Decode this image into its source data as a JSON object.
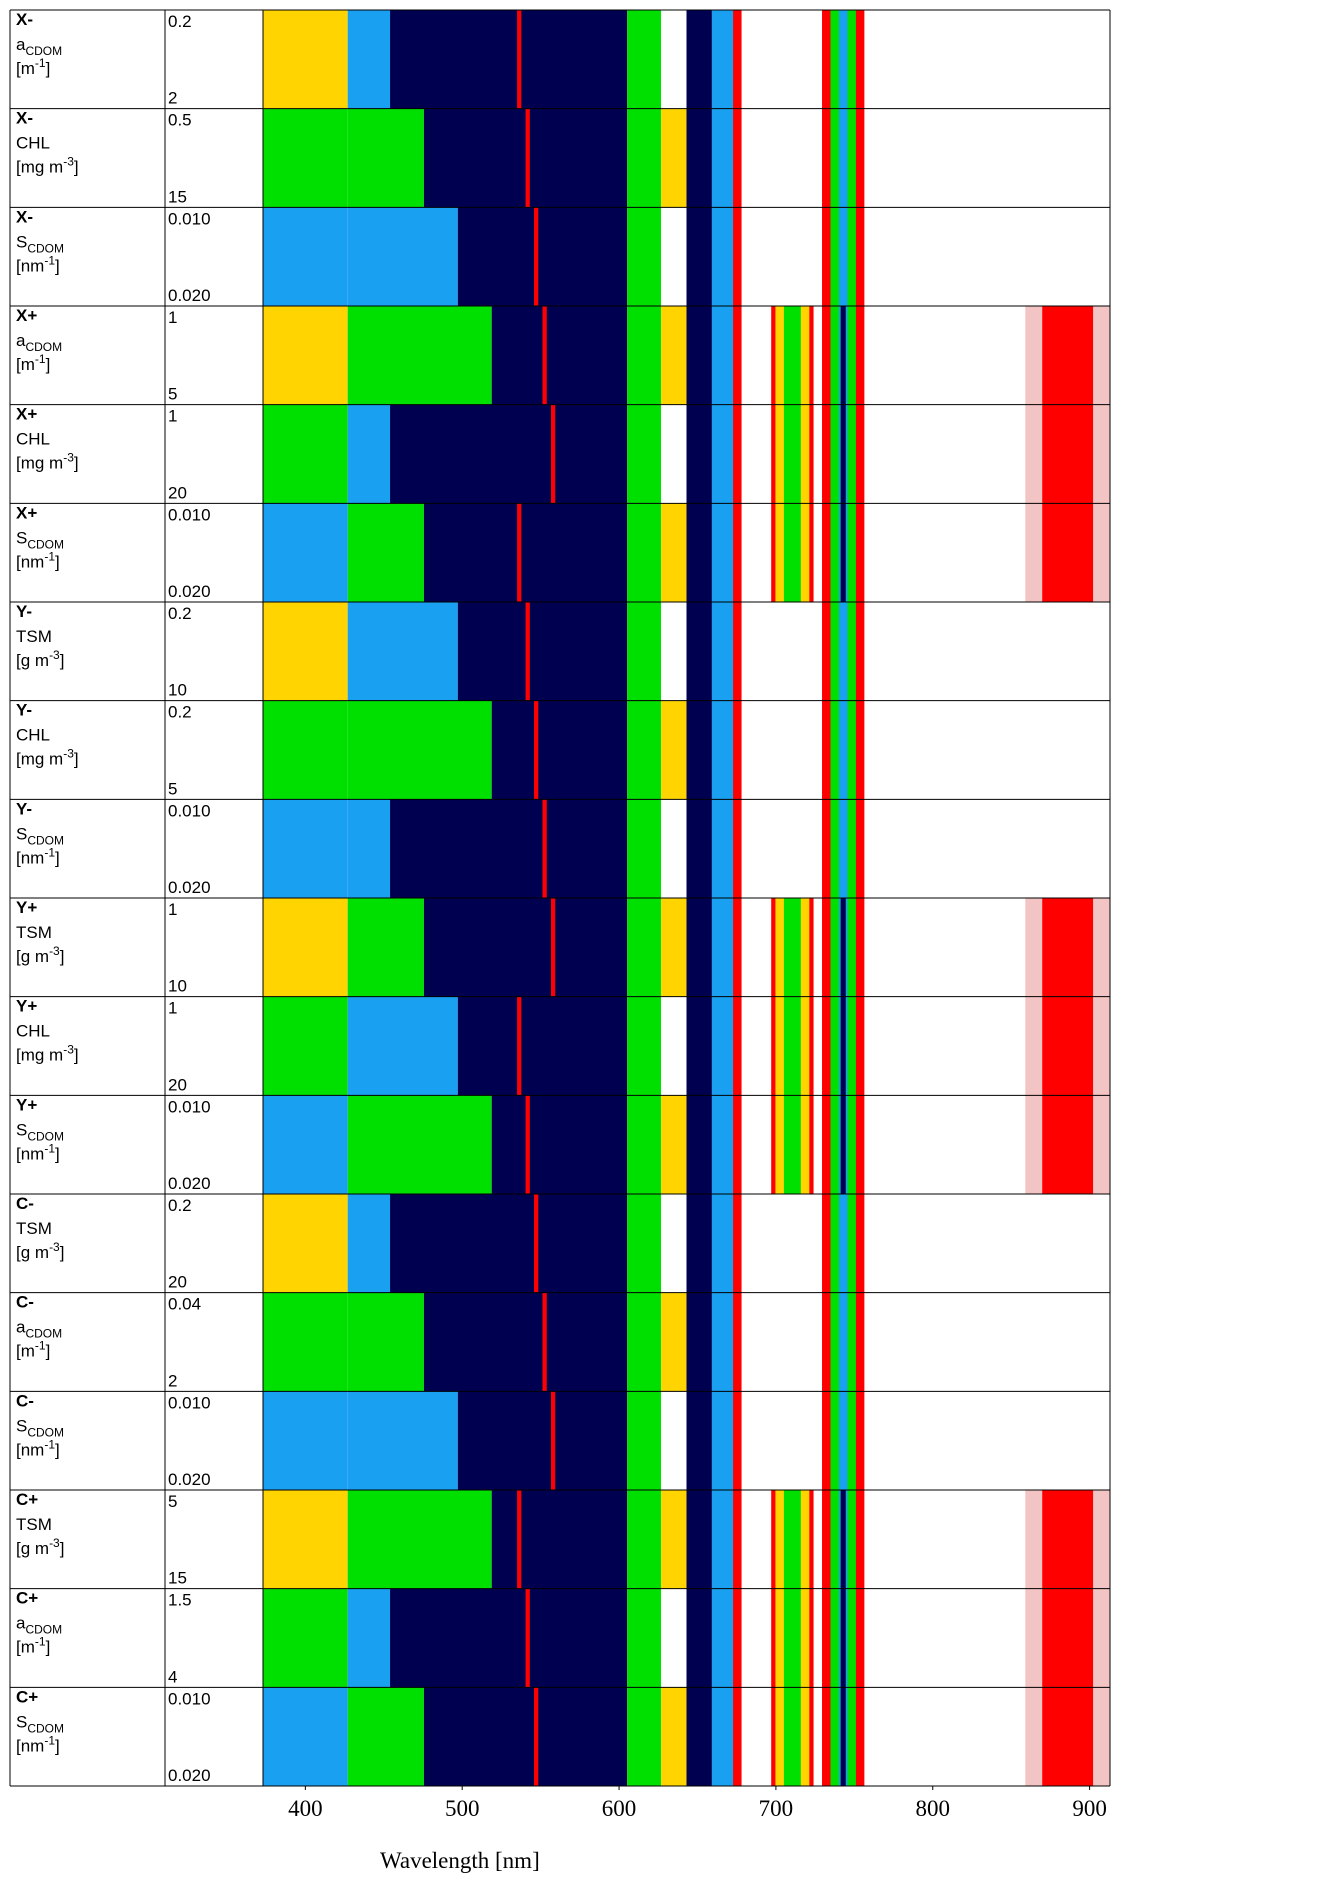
{
  "chart_data": {
    "type": "contour-panel",
    "xlabel": "Wavelength [nm]",
    "xlim": [
      373,
      913
    ],
    "xticks": [
      400,
      500,
      600,
      700,
      800,
      900
    ],
    "rows": [
      {
        "case": "X-",
        "param": "a",
        "param_sub": "CDOM",
        "unit": "[m",
        "unit_sup": "-1",
        "unit_end": "]",
        "min": "0.2",
        "max": "2"
      },
      {
        "case": "X-",
        "param": "CHL",
        "unit": "[mg m",
        "unit_sup": "-3",
        "unit_end": "]",
        "min": "0.5",
        "max": "15"
      },
      {
        "case": "X-",
        "param": "S",
        "param_sub": "CDOM",
        "unit": "[nm",
        "unit_sup": "-1",
        "unit_end": "]",
        "min": "0.010",
        "max": "0.020"
      },
      {
        "case": "X+",
        "param": "a",
        "param_sub": "CDOM",
        "unit": "[m",
        "unit_sup": "-1",
        "unit_end": "]",
        "min": "1",
        "max": "5"
      },
      {
        "case": "X+",
        "param": "CHL",
        "unit": "[mg m",
        "unit_sup": "-3",
        "unit_end": "]",
        "min": "1",
        "max": "20"
      },
      {
        "case": "X+",
        "param": "S",
        "param_sub": "CDOM",
        "unit": "[nm",
        "unit_sup": "-1",
        "unit_end": "]",
        "min": "0.010",
        "max": "0.020"
      },
      {
        "case": "Y-",
        "param": "TSM",
        "unit": "[g m",
        "unit_sup": "-3",
        "unit_end": "]",
        "min": "0.2",
        "max": "10"
      },
      {
        "case": "Y-",
        "param": "CHL",
        "unit": "[mg m",
        "unit_sup": "-3",
        "unit_end": "]",
        "min": "0.2",
        "max": "5"
      },
      {
        "case": "Y-",
        "param": "S",
        "param_sub": "CDOM",
        "unit": "[nm",
        "unit_sup": "-1",
        "unit_end": "]",
        "min": "0.010",
        "max": "0.020"
      },
      {
        "case": "Y+",
        "param": "TSM",
        "unit": "[g m",
        "unit_sup": "-3",
        "unit_end": "]",
        "min": "1",
        "max": "10"
      },
      {
        "case": "Y+",
        "param": "CHL",
        "unit": "[mg m",
        "unit_sup": "-3",
        "unit_end": "]",
        "min": "1",
        "max": "20"
      },
      {
        "case": "Y+",
        "param": "S",
        "param_sub": "CDOM",
        "unit": "[nm",
        "unit_sup": "-1",
        "unit_end": "]",
        "min": "0.010",
        "max": "0.020"
      },
      {
        "case": "C-",
        "param": "TSM",
        "unit": "[g m",
        "unit_sup": "-3",
        "unit_end": "]",
        "min": "0.2",
        "max": "20"
      },
      {
        "case": "C-",
        "param": "a",
        "param_sub": "CDOM",
        "unit": "[m",
        "unit_sup": "-1",
        "unit_end": "]",
        "min": "0.04",
        "max": "2"
      },
      {
        "case": "C-",
        "param": "S",
        "param_sub": "CDOM",
        "unit": "[nm",
        "unit_sup": "-1",
        "unit_end": "]",
        "min": "0.010",
        "max": "0.020"
      },
      {
        "case": "C+",
        "param": "TSM",
        "unit": "[g m",
        "unit_sup": "-3",
        "unit_end": "]",
        "min": "5",
        "max": "15"
      },
      {
        "case": "C+",
        "param": "a",
        "param_sub": "CDOM",
        "unit": "[m",
        "unit_sup": "-1",
        "unit_end": "]",
        "min": "1.5",
        "max": "4"
      },
      {
        "case": "C+",
        "param": "S",
        "param_sub": "CDOM",
        "unit": "[nm",
        "unit_sup": "-1",
        "unit_end": "]",
        "min": "0.010",
        "max": "0.020"
      }
    ]
  }
}
